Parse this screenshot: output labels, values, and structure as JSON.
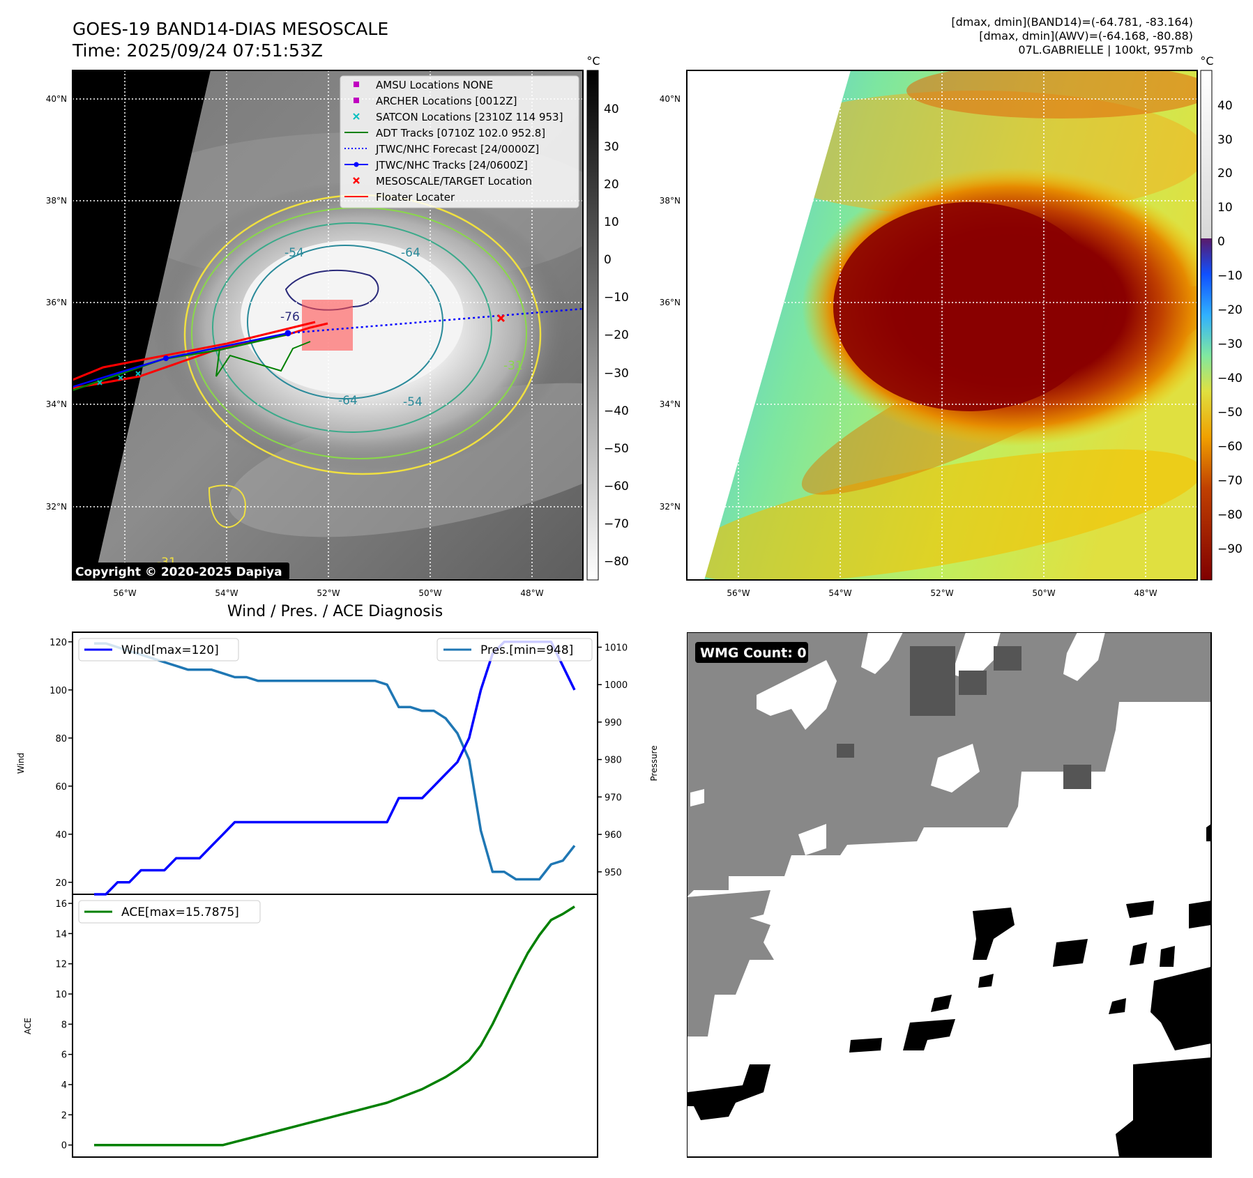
{
  "header": {
    "title_line1": "GOES-19 BAND14-DIAS MESOSCALE",
    "title_line2": "Time: 2025/09/24 07:51:53Z",
    "info_line1": "[dmax, dmin](BAND14)=(-64.781, -83.164)",
    "info_line2": "[dmax, dmin](AWV)=(-64.168, -80.88)",
    "info_line3": "07L.GABRIELLE | 100kt, 957mb"
  },
  "map_ir": {
    "lat_labels": [
      "40°N",
      "38°N",
      "36°N",
      "34°N",
      "32°N"
    ],
    "lon_labels": [
      "56°W",
      "54°W",
      "52°W",
      "50°W",
      "48°W"
    ],
    "colorbar_unit": "°C",
    "colorbar_ticks": [
      "40",
      "30",
      "20",
      "10",
      "0",
      "−10",
      "−20",
      "−30",
      "−40",
      "−50",
      "−60",
      "−70",
      "−80"
    ],
    "contour_labels": [
      "-54",
      "-64",
      "-76",
      "-64",
      "-54",
      "-31",
      "-31"
    ],
    "copyright": "Copyright © 2020-2025 Dapiya",
    "legend": [
      {
        "label": "AMSU Locations NONE",
        "color": "#c000c0",
        "marker": "square"
      },
      {
        "label": "ARCHER Locations [0012Z]",
        "color": "#c000c0",
        "marker": "square"
      },
      {
        "label": "SATCON Locations [2310Z 114 953]",
        "color": "#00bfbf",
        "marker": "x"
      },
      {
        "label": "ADT Tracks [0710Z 102.0 952.8]",
        "color": "#008000",
        "marker": "line"
      },
      {
        "label": "JTWC/NHC Forecast [24/0000Z]",
        "color": "#0000ff",
        "marker": "dotted"
      },
      {
        "label": "JTWC/NHC Tracks [24/0600Z]",
        "color": "#0000ff",
        "marker": "line-dot"
      },
      {
        "label": "MESOSCALE/TARGET Location",
        "color": "#ff0000",
        "marker": "x"
      },
      {
        "label": "Floater Locater",
        "color": "#ff0000",
        "marker": "line"
      }
    ]
  },
  "map_wv": {
    "lat_labels": [
      "40°N",
      "38°N",
      "36°N",
      "34°N",
      "32°N"
    ],
    "lon_labels": [
      "56°W",
      "54°W",
      "52°W",
      "50°W",
      "48°W"
    ],
    "colorbar_unit": "°C",
    "colorbar_ticks": [
      "40",
      "30",
      "20",
      "10",
      "0",
      "−10",
      "−20",
      "−30",
      "−40",
      "−50",
      "−60",
      "−70",
      "−80",
      "−90"
    ]
  },
  "diagnosis": {
    "title": "Wind / Pres. / ACE Diagnosis",
    "wind_axis_label": "Wind",
    "pres_axis_label": "Pressure",
    "ace_axis_label": "ACE",
    "wind_ticks": [
      "20",
      "40",
      "60",
      "80",
      "100",
      "120"
    ],
    "pres_ticks": [
      "950",
      "960",
      "970",
      "980",
      "990",
      "1000",
      "1010"
    ],
    "ace_ticks": [
      "0",
      "2",
      "4",
      "6",
      "8",
      "10",
      "12",
      "14",
      "16"
    ],
    "wind_legend": "Wind[max=120]",
    "pres_legend": "Pres.[min=948]",
    "ace_legend": "ACE[max=15.7875]",
    "wind_color": "#0000ff",
    "pres_color": "#1f77b4",
    "ace_color": "#008000"
  },
  "wmg": {
    "badge": "WMG Count: 0"
  },
  "chart_data": [
    {
      "type": "line",
      "title": "Wind / Pres. / ACE Diagnosis",
      "ylabel": "Wind",
      "ylim": [
        15,
        124
      ],
      "series": [
        {
          "name": "Wind[max=120]",
          "values": [
            15,
            15,
            20,
            20,
            25,
            25,
            25,
            30,
            30,
            30,
            35,
            40,
            45,
            45,
            45,
            45,
            45,
            45,
            45,
            45,
            45,
            45,
            45,
            45,
            45,
            45,
            55,
            55,
            55,
            60,
            65,
            70,
            80,
            100,
            115,
            120,
            120,
            120,
            120,
            120,
            110,
            100
          ]
        }
      ]
    },
    {
      "type": "line",
      "ylabel": "Pressure",
      "ylim": [
        944,
        1014
      ],
      "series": [
        {
          "name": "Pres.[min=948]",
          "values": [
            1011,
            1011,
            1010,
            1009,
            1008,
            1007,
            1006,
            1005,
            1004,
            1004,
            1004,
            1003,
            1002,
            1002,
            1001,
            1001,
            1001,
            1001,
            1001,
            1001,
            1001,
            1001,
            1001,
            1001,
            1001,
            1000,
            994,
            994,
            993,
            993,
            991,
            987,
            980,
            961,
            950,
            950,
            948,
            948,
            948,
            952,
            953,
            957
          ]
        }
      ]
    },
    {
      "type": "line",
      "ylabel": "ACE",
      "ylim": [
        -0.8,
        16.6
      ],
      "series": [
        {
          "name": "ACE[max=15.7875]",
          "values": [
            0,
            0,
            0,
            0,
            0,
            0,
            0,
            0,
            0,
            0,
            0,
            0,
            0.2,
            0.4,
            0.6,
            0.8,
            1.0,
            1.2,
            1.4,
            1.6,
            1.8,
            2.0,
            2.2,
            2.4,
            2.6,
            2.8,
            3.1,
            3.4,
            3.7,
            4.1,
            4.5,
            5.0,
            5.6,
            6.6,
            8.0,
            9.6,
            11.2,
            12.7,
            13.9,
            14.9,
            15.3,
            15.7875
          ]
        }
      ]
    }
  ]
}
